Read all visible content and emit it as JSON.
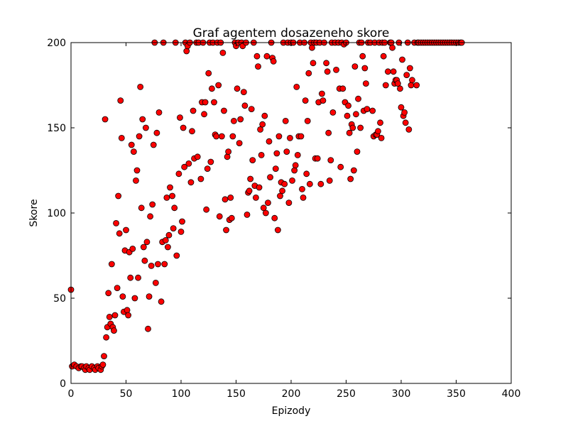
{
  "chart_data": {
    "type": "scatter",
    "title": "Graf agentem dosazeneho skore",
    "xlabel": "Epizody",
    "ylabel": "Skore",
    "xlim": [
      0,
      400
    ],
    "ylim": [
      0,
      200
    ],
    "xticks": [
      0,
      50,
      100,
      150,
      200,
      250,
      300,
      350,
      400
    ],
    "yticks": [
      0,
      50,
      100,
      150,
      200
    ],
    "grid": false,
    "marker_color": "#ff0000",
    "marker_edge_color": "#000000",
    "points": [
      [
        0,
        55
      ],
      [
        1,
        10
      ],
      [
        3,
        11
      ],
      [
        5,
        10
      ],
      [
        7,
        9
      ],
      [
        9,
        10
      ],
      [
        10,
        10
      ],
      [
        12,
        9
      ],
      [
        13,
        8
      ],
      [
        14,
        10
      ],
      [
        16,
        9
      ],
      [
        17,
        8
      ],
      [
        19,
        10
      ],
      [
        21,
        9
      ],
      [
        22,
        8
      ],
      [
        24,
        10
      ],
      [
        25,
        9
      ],
      [
        27,
        8
      ],
      [
        28,
        10
      ],
      [
        29,
        11
      ],
      [
        30,
        16
      ],
      [
        31,
        155
      ],
      [
        32,
        27
      ],
      [
        33,
        33
      ],
      [
        34,
        53
      ],
      [
        35,
        39
      ],
      [
        36,
        35
      ],
      [
        37,
        70
      ],
      [
        38,
        33
      ],
      [
        39,
        31
      ],
      [
        40,
        40
      ],
      [
        41,
        94
      ],
      [
        42,
        56
      ],
      [
        43,
        110
      ],
      [
        44,
        88
      ],
      [
        45,
        166
      ],
      [
        46,
        144
      ],
      [
        47,
        51
      ],
      [
        48,
        42
      ],
      [
        49,
        78
      ],
      [
        50,
        90
      ],
      [
        51,
        43
      ],
      [
        52,
        40
      ],
      [
        53,
        77
      ],
      [
        54,
        62
      ],
      [
        55,
        140
      ],
      [
        56,
        79
      ],
      [
        57,
        136
      ],
      [
        58,
        50
      ],
      [
        59,
        119
      ],
      [
        60,
        125
      ],
      [
        61,
        62
      ],
      [
        62,
        145
      ],
      [
        63,
        174
      ],
      [
        64,
        103
      ],
      [
        65,
        155
      ],
      [
        66,
        80
      ],
      [
        67,
        72
      ],
      [
        68,
        150
      ],
      [
        69,
        83
      ],
      [
        70,
        32
      ],
      [
        71,
        51
      ],
      [
        72,
        98
      ],
      [
        73,
        69
      ],
      [
        74,
        105
      ],
      [
        75,
        140
      ],
      [
        76,
        200
      ],
      [
        77,
        59
      ],
      [
        78,
        147
      ],
      [
        79,
        70
      ],
      [
        80,
        159
      ],
      [
        82,
        48
      ],
      [
        83,
        83
      ],
      [
        84,
        200
      ],
      [
        85,
        70
      ],
      [
        86,
        84
      ],
      [
        87,
        109
      ],
      [
        88,
        80
      ],
      [
        89,
        87
      ],
      [
        90,
        115
      ],
      [
        92,
        110
      ],
      [
        93,
        91
      ],
      [
        94,
        103
      ],
      [
        95,
        200
      ],
      [
        96,
        75
      ],
      [
        98,
        123
      ],
      [
        99,
        156
      ],
      [
        100,
        89
      ],
      [
        101,
        95
      ],
      [
        102,
        150
      ],
      [
        103,
        127
      ],
      [
        104,
        200
      ],
      [
        105,
        195
      ],
      [
        106,
        198
      ],
      [
        107,
        129
      ],
      [
        108,
        200
      ],
      [
        109,
        118
      ],
      [
        110,
        148
      ],
      [
        111,
        160
      ],
      [
        112,
        132
      ],
      [
        114,
        200
      ],
      [
        115,
        133
      ],
      [
        116,
        200
      ],
      [
        118,
        120
      ],
      [
        119,
        165
      ],
      [
        120,
        200
      ],
      [
        121,
        158
      ],
      [
        122,
        165
      ],
      [
        123,
        102
      ],
      [
        124,
        126
      ],
      [
        125,
        182
      ],
      [
        126,
        200
      ],
      [
        127,
        130
      ],
      [
        128,
        173
      ],
      [
        129,
        200
      ],
      [
        130,
        165
      ],
      [
        131,
        146
      ],
      [
        132,
        145
      ],
      [
        133,
        200
      ],
      [
        134,
        175
      ],
      [
        135,
        98
      ],
      [
        136,
        200
      ],
      [
        137,
        145
      ],
      [
        138,
        194
      ],
      [
        139,
        160
      ],
      [
        140,
        108
      ],
      [
        141,
        90
      ],
      [
        142,
        133
      ],
      [
        143,
        136
      ],
      [
        144,
        96
      ],
      [
        145,
        109
      ],
      [
        146,
        97
      ],
      [
        147,
        145
      ],
      [
        148,
        154
      ],
      [
        149,
        200
      ],
      [
        150,
        198
      ],
      [
        151,
        173
      ],
      [
        152,
        200
      ],
      [
        153,
        141
      ],
      [
        154,
        155
      ],
      [
        155,
        200
      ],
      [
        156,
        198
      ],
      [
        157,
        171
      ],
      [
        158,
        163
      ],
      [
        159,
        200
      ],
      [
        160,
        99
      ],
      [
        161,
        112
      ],
      [
        162,
        113
      ],
      [
        163,
        120
      ],
      [
        164,
        161
      ],
      [
        165,
        131
      ],
      [
        166,
        200
      ],
      [
        167,
        116
      ],
      [
        168,
        109
      ],
      [
        169,
        192
      ],
      [
        170,
        186
      ],
      [
        171,
        115
      ],
      [
        172,
        149
      ],
      [
        173,
        134
      ],
      [
        174,
        152
      ],
      [
        175,
        103
      ],
      [
        176,
        157
      ],
      [
        177,
        100
      ],
      [
        178,
        192
      ],
      [
        179,
        106
      ],
      [
        180,
        142
      ],
      [
        181,
        121
      ],
      [
        182,
        200
      ],
      [
        183,
        191
      ],
      [
        184,
        189
      ],
      [
        185,
        97
      ],
      [
        186,
        126
      ],
      [
        187,
        135
      ],
      [
        188,
        90
      ],
      [
        189,
        145
      ],
      [
        190,
        110
      ],
      [
        191,
        118
      ],
      [
        192,
        113
      ],
      [
        193,
        200
      ],
      [
        194,
        117
      ],
      [
        195,
        154
      ],
      [
        196,
        136
      ],
      [
        197,
        200
      ],
      [
        198,
        106
      ],
      [
        199,
        144
      ],
      [
        200,
        200
      ],
      [
        201,
        119
      ],
      [
        202,
        200
      ],
      [
        203,
        125
      ],
      [
        204,
        128
      ],
      [
        205,
        174
      ],
      [
        206,
        134
      ],
      [
        207,
        145
      ],
      [
        208,
        200
      ],
      [
        209,
        145
      ],
      [
        210,
        114
      ],
      [
        211,
        109
      ],
      [
        212,
        200
      ],
      [
        213,
        166
      ],
      [
        214,
        123
      ],
      [
        215,
        154
      ],
      [
        216,
        182
      ],
      [
        217,
        117
      ],
      [
        218,
        200
      ],
      [
        219,
        197
      ],
      [
        220,
        188
      ],
      [
        221,
        200
      ],
      [
        222,
        132
      ],
      [
        223,
        200
      ],
      [
        224,
        132
      ],
      [
        225,
        165
      ],
      [
        226,
        200
      ],
      [
        227,
        117
      ],
      [
        228,
        170
      ],
      [
        229,
        166
      ],
      [
        230,
        200
      ],
      [
        232,
        188
      ],
      [
        233,
        183
      ],
      [
        234,
        147
      ],
      [
        235,
        119
      ],
      [
        236,
        131
      ],
      [
        237,
        200
      ],
      [
        238,
        159
      ],
      [
        240,
        200
      ],
      [
        241,
        184
      ],
      [
        243,
        200
      ],
      [
        244,
        173
      ],
      [
        245,
        127
      ],
      [
        246,
        200
      ],
      [
        247,
        173
      ],
      [
        248,
        199
      ],
      [
        249,
        165
      ],
      [
        250,
        200
      ],
      [
        251,
        157
      ],
      [
        252,
        163
      ],
      [
        253,
        147
      ],
      [
        254,
        120
      ],
      [
        255,
        152
      ],
      [
        256,
        150
      ],
      [
        257,
        125
      ],
      [
        258,
        186
      ],
      [
        259,
        158
      ],
      [
        260,
        136
      ],
      [
        261,
        167
      ],
      [
        262,
        200
      ],
      [
        263,
        150
      ],
      [
        264,
        200
      ],
      [
        265,
        192
      ],
      [
        266,
        160
      ],
      [
        267,
        185
      ],
      [
        268,
        176
      ],
      [
        269,
        161
      ],
      [
        270,
        200
      ],
      [
        272,
        200
      ],
      [
        274,
        160
      ],
      [
        275,
        145
      ],
      [
        276,
        200
      ],
      [
        277,
        146
      ],
      [
        278,
        146
      ],
      [
        279,
        148
      ],
      [
        280,
        200
      ],
      [
        281,
        153
      ],
      [
        282,
        144
      ],
      [
        283,
        200
      ],
      [
        284,
        192
      ],
      [
        285,
        200
      ],
      [
        286,
        175
      ],
      [
        288,
        183
      ],
      [
        290,
        200
      ],
      [
        291,
        200
      ],
      [
        292,
        197
      ],
      [
        293,
        183
      ],
      [
        294,
        176
      ],
      [
        295,
        178
      ],
      [
        296,
        178
      ],
      [
        297,
        176
      ],
      [
        298,
        200
      ],
      [
        299,
        173
      ],
      [
        300,
        162
      ],
      [
        301,
        190
      ],
      [
        302,
        157
      ],
      [
        303,
        159
      ],
      [
        304,
        153
      ],
      [
        305,
        181
      ],
      [
        306,
        200
      ],
      [
        307,
        149
      ],
      [
        308,
        185
      ],
      [
        309,
        175
      ],
      [
        310,
        178
      ],
      [
        312,
        200
      ],
      [
        314,
        175
      ],
      [
        315,
        200
      ],
      [
        316,
        200
      ],
      [
        318,
        200
      ],
      [
        320,
        200
      ],
      [
        322,
        200
      ],
      [
        324,
        200
      ],
      [
        326,
        200
      ],
      [
        328,
        200
      ],
      [
        330,
        200
      ],
      [
        332,
        200
      ],
      [
        334,
        200
      ],
      [
        336,
        200
      ],
      [
        338,
        200
      ],
      [
        340,
        200
      ],
      [
        342,
        200
      ],
      [
        344,
        200
      ],
      [
        346,
        200
      ],
      [
        348,
        200
      ],
      [
        350,
        200
      ],
      [
        352,
        200
      ],
      [
        354,
        200
      ],
      [
        355,
        200
      ]
    ]
  }
}
